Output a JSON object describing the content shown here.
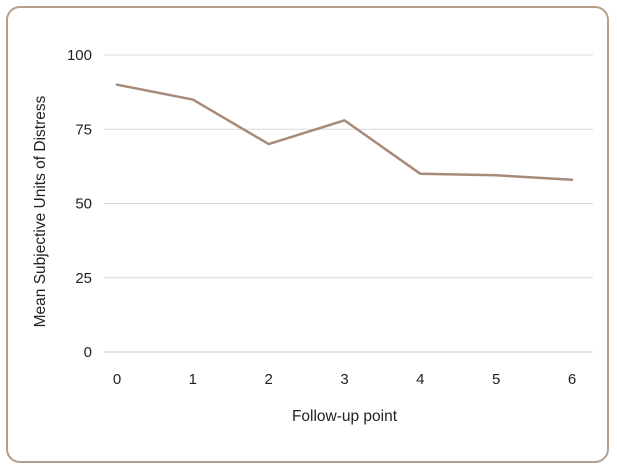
{
  "chart_data": {
    "type": "line",
    "title": "",
    "xlabel": "Follow-up point",
    "ylabel": "Mean Subjective Units of Distress",
    "x": [
      0,
      1,
      2,
      3,
      4,
      5,
      6
    ],
    "categories": [
      "0",
      "1",
      "2",
      "3",
      "4",
      "5",
      "6"
    ],
    "yticks": [
      0,
      25,
      50,
      75,
      100
    ],
    "ylim": [
      0,
      100
    ],
    "grid": true,
    "legend": "none",
    "series": [
      {
        "values": [
          90,
          85,
          70,
          78,
          60,
          59.5,
          58
        ]
      }
    ],
    "colors": {
      "line": "#a68b7a",
      "grid": "#d9d9d9",
      "frame": "#b59f8c"
    }
  }
}
